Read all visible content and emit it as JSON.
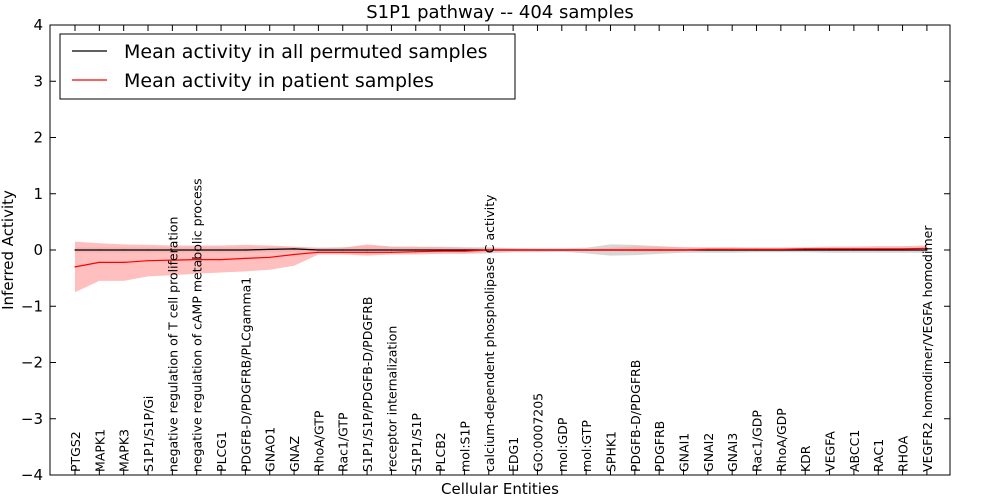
{
  "chart_data": {
    "type": "line",
    "title": "S1P1 pathway -- 404 samples",
    "xlabel": "Cellular Entities",
    "ylabel": "Inferred Activity",
    "ylim": [
      -4,
      4
    ],
    "yticks": [
      "4",
      "3",
      "2",
      "1",
      "0",
      "−1",
      "−2",
      "−3",
      "−4"
    ],
    "ytick_values": [
      4,
      3,
      2,
      1,
      0,
      -1,
      -2,
      -3,
      -4
    ],
    "grid": false,
    "legend_position": "top-left",
    "categories": [
      "PTGS2",
      "MAPK1",
      "MAPK3",
      "S1P1/S1P/Gi",
      "negative regulation of T cell proliferation",
      "negative regulation of cAMP metabolic process",
      "PLCG1",
      "PDGFB-D/PDGFRB/PLCgamma1",
      "GNAO1",
      "GNAZ",
      "RhoA/GTP",
      "Rac1/GTP",
      "S1P1/S1P/PDGFB-D/PDGFRB",
      "receptor internalization",
      "S1P1/S1P",
      "PLCB2",
      "mol:S1P",
      "calcium-dependent phospholipase C activity",
      "EDG1",
      "GO:0007205",
      "mol:GDP",
      "mol:GTP",
      "SPHK1",
      "PDGFB-D/PDGFRB",
      "PDGFRB",
      "GNAI1",
      "GNAI2",
      "GNAI3",
      "Rac1/GDP",
      "RhoA/GDP",
      "KDR",
      "VEGFA",
      "ABCC1",
      "RAC1",
      "RHOA",
      "VEGFR2 homodimer/VEGFA homodimer"
    ],
    "series": [
      {
        "name": "Mean activity in all permuted samples",
        "color": "#000000",
        "band_color": "#bbbbbb",
        "values": [
          0.0,
          0.0,
          0.0,
          0.0,
          0.0,
          0.0,
          0.0,
          0.0,
          0.01,
          0.02,
          0.0,
          0.0,
          0.0,
          0.0,
          0.0,
          0.0,
          0.0,
          0.0,
          0.0,
          0.0,
          0.0,
          0.0,
          0.0,
          0.0,
          0.0,
          0.0,
          0.0,
          0.0,
          0.0,
          0.0,
          0.0,
          0.0,
          0.0,
          0.0,
          0.0,
          0.0
        ],
        "upper": [
          0.05,
          0.05,
          0.05,
          0.05,
          0.05,
          0.05,
          0.05,
          0.05,
          0.05,
          0.05,
          0.04,
          0.05,
          0.07,
          0.06,
          0.05,
          0.06,
          0.05,
          0.05,
          0.03,
          0.03,
          0.03,
          0.04,
          0.1,
          0.09,
          0.07,
          0.05,
          0.05,
          0.05,
          0.04,
          0.04,
          0.04,
          0.04,
          0.04,
          0.04,
          0.04,
          0.04
        ],
        "lower": [
          -0.05,
          -0.05,
          -0.05,
          -0.05,
          -0.05,
          -0.05,
          -0.05,
          -0.05,
          -0.04,
          -0.04,
          -0.05,
          -0.05,
          -0.07,
          -0.06,
          -0.05,
          -0.06,
          -0.07,
          -0.06,
          -0.04,
          -0.04,
          -0.03,
          -0.06,
          -0.1,
          -0.09,
          -0.07,
          -0.05,
          -0.05,
          -0.05,
          -0.04,
          -0.04,
          -0.04,
          -0.05,
          -0.05,
          -0.05,
          -0.05,
          -0.05
        ]
      },
      {
        "name": "Mean activity in patient samples",
        "color": "#ff0000",
        "band_color": "#ffaaaa",
        "values": [
          -0.3,
          -0.22,
          -0.22,
          -0.19,
          -0.18,
          -0.17,
          -0.17,
          -0.15,
          -0.13,
          -0.08,
          -0.04,
          -0.04,
          -0.04,
          -0.04,
          -0.03,
          -0.02,
          -0.02,
          0.0,
          0.0,
          0.0,
          0.0,
          0.0,
          0.0,
          0.0,
          0.0,
          0.0,
          0.01,
          0.01,
          0.01,
          0.01,
          0.02,
          0.02,
          0.02,
          0.02,
          0.02,
          0.03
        ],
        "upper": [
          0.15,
          0.12,
          0.1,
          0.09,
          0.08,
          0.08,
          0.08,
          0.09,
          0.08,
          0.06,
          0.04,
          0.04,
          0.1,
          0.06,
          0.06,
          0.05,
          0.04,
          0.03,
          0.03,
          0.02,
          0.02,
          0.02,
          0.04,
          0.06,
          0.06,
          0.05,
          0.04,
          0.04,
          0.04,
          0.04,
          0.05,
          0.06,
          0.06,
          0.07,
          0.07,
          0.08
        ],
        "lower": [
          -0.75,
          -0.55,
          -0.55,
          -0.47,
          -0.45,
          -0.42,
          -0.4,
          -0.38,
          -0.35,
          -0.28,
          -0.08,
          -0.08,
          -0.1,
          -0.08,
          -0.08,
          -0.07,
          -0.06,
          -0.03,
          -0.02,
          -0.02,
          -0.02,
          -0.02,
          -0.02,
          -0.03,
          -0.03,
          -0.02,
          -0.02,
          -0.02,
          -0.02,
          -0.02,
          -0.01,
          -0.01,
          -0.01,
          -0.01,
          -0.01,
          -0.01
        ]
      }
    ]
  }
}
